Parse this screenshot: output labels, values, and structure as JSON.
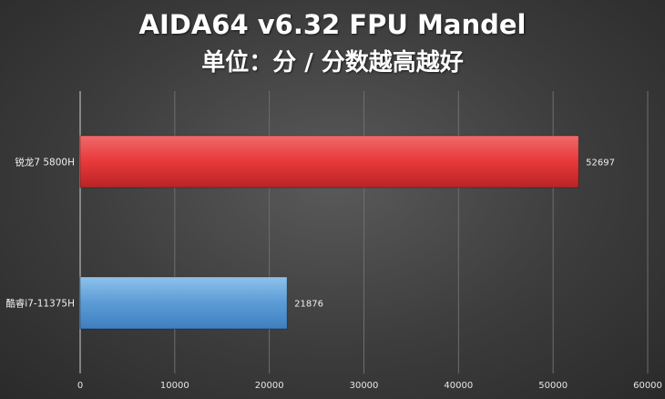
{
  "chart_data": {
    "type": "bar",
    "orientation": "horizontal",
    "title": "AIDA64 v6.32 FPU Mandel",
    "subtitle": "单位：分 / 分数越高越好",
    "categories": [
      "锐龙7 5800H",
      "酷睿i7-11375H"
    ],
    "values": [
      52697,
      21876
    ],
    "value_labels": [
      "52697",
      "21876"
    ],
    "xlim": [
      0,
      60000
    ],
    "xticks": [
      "0",
      "10000",
      "20000",
      "30000",
      "40000",
      "50000",
      "60000"
    ],
    "grid": true,
    "legend": "none",
    "colors": [
      "#e8383a",
      "#5b9bd5"
    ]
  }
}
